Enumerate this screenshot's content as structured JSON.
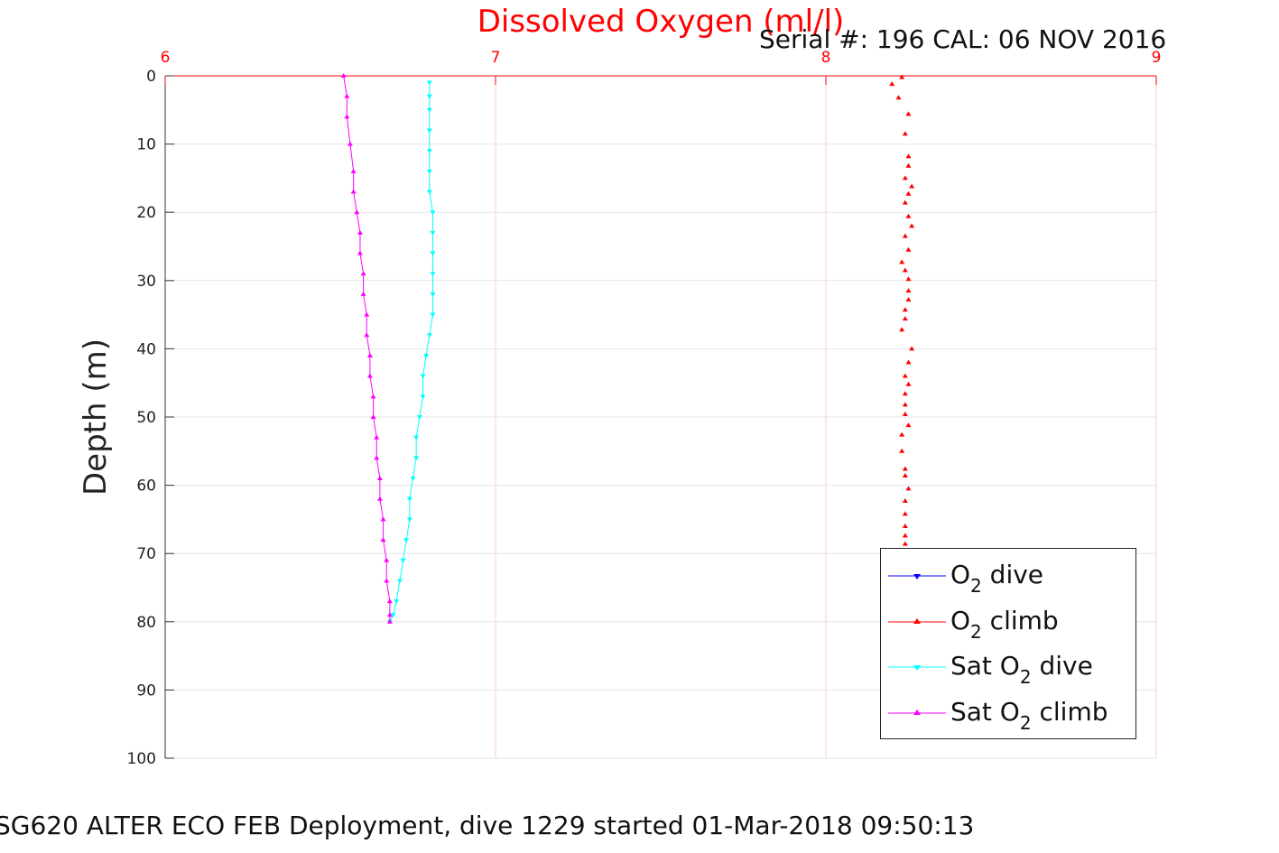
{
  "chart_data": {
    "type": "line",
    "title": "Dissolved Oxygen (ml/l)",
    "subtitle": "Serial #: 196  CAL: 06 NOV 2016",
    "footer": "SG620 ALTER ECO FEB Deployment, dive 1229 started 01-Mar-2018 09:50:13",
    "xlabel": "Dissolved Oxygen (ml/l)",
    "ylabel": "Depth (m)",
    "xlim": [
      6,
      9
    ],
    "ylim": [
      0,
      100
    ],
    "y_reversed": true,
    "x_axis_position": "top",
    "grid": true,
    "x_ticks": [
      6,
      7,
      8,
      9
    ],
    "y_ticks": [
      0,
      10,
      20,
      30,
      40,
      50,
      60,
      70,
      80,
      90,
      100
    ],
    "legend_position": "bottom-right",
    "colors": {
      "title": "#ff0000",
      "x_tick_labels": "#ff0000",
      "grid": "#e6e6e6",
      "x_grid": "#ffcccc"
    },
    "series": [
      {
        "name": "O2 dive",
        "color": "#0000ff",
        "marker": "triangle-down",
        "points": []
      },
      {
        "name": "O2 climb",
        "color": "#ff0000",
        "marker": "triangle-up",
        "points": [
          [
            8.23,
            0.2
          ],
          [
            8.2,
            1.2
          ],
          [
            8.22,
            3.2
          ],
          [
            8.25,
            5.6
          ],
          [
            8.24,
            8.5
          ],
          [
            8.25,
            11.8
          ],
          [
            8.25,
            13.2
          ],
          [
            8.24,
            15.0
          ],
          [
            8.26,
            16.2
          ],
          [
            8.25,
            17.3
          ],
          [
            8.24,
            18.6
          ],
          [
            8.25,
            20.6
          ],
          [
            8.26,
            22.0
          ],
          [
            8.24,
            23.5
          ],
          [
            8.25,
            25.5
          ],
          [
            8.23,
            27.3
          ],
          [
            8.24,
            28.5
          ],
          [
            8.25,
            29.8
          ],
          [
            8.25,
            31.5
          ],
          [
            8.25,
            32.8
          ],
          [
            8.24,
            34.3
          ],
          [
            8.24,
            35.6
          ],
          [
            8.23,
            37.2
          ],
          [
            8.26,
            40.0
          ],
          [
            8.25,
            42.0
          ],
          [
            8.24,
            44.0
          ],
          [
            8.25,
            45.2
          ],
          [
            8.24,
            46.6
          ],
          [
            8.24,
            48.2
          ],
          [
            8.24,
            49.6
          ],
          [
            8.25,
            51.2
          ],
          [
            8.23,
            52.6
          ],
          [
            8.23,
            55.0
          ],
          [
            8.24,
            57.6
          ],
          [
            8.24,
            58.6
          ],
          [
            8.25,
            60.5
          ],
          [
            8.24,
            62.3
          ],
          [
            8.24,
            64.2
          ],
          [
            8.24,
            66.0
          ],
          [
            8.24,
            67.4
          ],
          [
            8.24,
            68.6
          ],
          [
            8.24,
            69.8
          ]
        ]
      },
      {
        "name": "Sat O2 dive",
        "color": "#00ffff",
        "marker": "triangle-down",
        "points": [
          [
            6.8,
            1
          ],
          [
            6.8,
            3
          ],
          [
            6.8,
            5
          ],
          [
            6.8,
            8
          ],
          [
            6.8,
            11
          ],
          [
            6.8,
            14
          ],
          [
            6.8,
            17
          ],
          [
            6.81,
            20
          ],
          [
            6.81,
            23
          ],
          [
            6.81,
            26
          ],
          [
            6.81,
            29
          ],
          [
            6.81,
            32
          ],
          [
            6.81,
            35
          ],
          [
            6.8,
            38
          ],
          [
            6.79,
            41
          ],
          [
            6.78,
            44
          ],
          [
            6.78,
            47
          ],
          [
            6.77,
            50
          ],
          [
            6.76,
            53
          ],
          [
            6.76,
            56
          ],
          [
            6.75,
            59
          ],
          [
            6.74,
            62
          ],
          [
            6.74,
            65
          ],
          [
            6.73,
            68
          ],
          [
            6.72,
            71
          ],
          [
            6.71,
            74
          ],
          [
            6.7,
            77
          ],
          [
            6.69,
            79
          ],
          [
            6.68,
            80
          ]
        ]
      },
      {
        "name": "Sat O2 climb",
        "color": "#ff00ff",
        "marker": "triangle-up",
        "points": [
          [
            6.54,
            0
          ],
          [
            6.55,
            3
          ],
          [
            6.55,
            6
          ],
          [
            6.56,
            10
          ],
          [
            6.57,
            14
          ],
          [
            6.57,
            17
          ],
          [
            6.58,
            20
          ],
          [
            6.59,
            23
          ],
          [
            6.59,
            26
          ],
          [
            6.6,
            29
          ],
          [
            6.6,
            32
          ],
          [
            6.61,
            35
          ],
          [
            6.61,
            38
          ],
          [
            6.62,
            41
          ],
          [
            6.62,
            44
          ],
          [
            6.63,
            47
          ],
          [
            6.63,
            50
          ],
          [
            6.64,
            53
          ],
          [
            6.64,
            56
          ],
          [
            6.65,
            59
          ],
          [
            6.65,
            62
          ],
          [
            6.66,
            65
          ],
          [
            6.66,
            68
          ],
          [
            6.67,
            71
          ],
          [
            6.67,
            74
          ],
          [
            6.68,
            77
          ],
          [
            6.68,
            79
          ],
          [
            6.68,
            80
          ]
        ]
      }
    ]
  },
  "legend": {
    "items": [
      {
        "prefix": "O",
        "sub": "2",
        "suffix": " dive"
      },
      {
        "prefix": "O",
        "sub": "2",
        "suffix": " climb"
      },
      {
        "prefix": "Sat O",
        "sub": "2",
        "suffix": " dive"
      },
      {
        "prefix": "Sat O",
        "sub": "2",
        "suffix": " climb"
      }
    ]
  }
}
